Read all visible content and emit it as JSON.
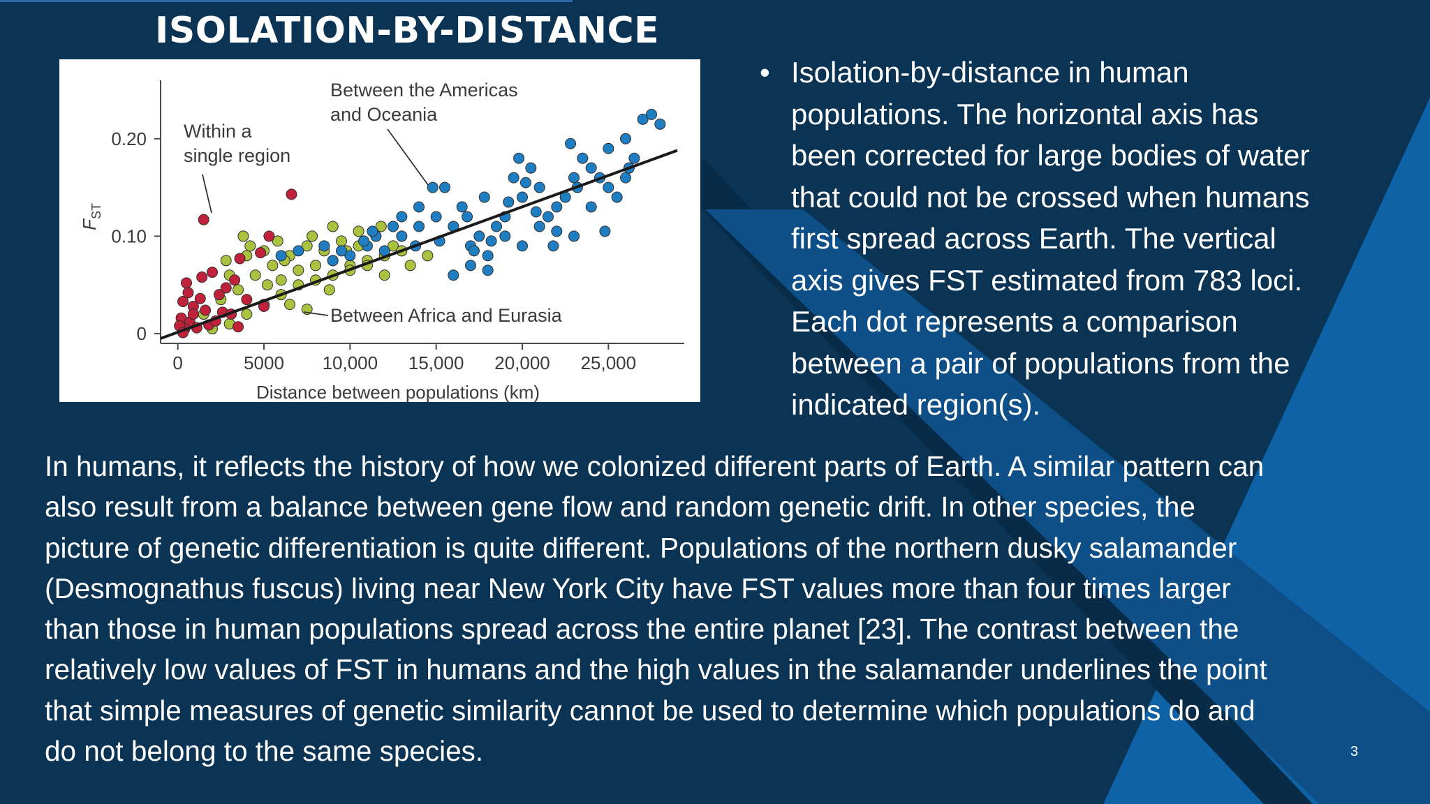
{
  "slide": {
    "title": "ISOLATION-BY-DISTANCE",
    "page_number": "3",
    "bullet_symbol": "•",
    "bullet_lines": [
      "Isolation-by-distance in human",
      "populations. The horizontal axis has",
      "been corrected for large bodies of water",
      "that could not be crossed when humans",
      "first spread across Earth. The vertical",
      "axis gives FST estimated from 783 loci.",
      "Each dot represents a comparison",
      "between a pair of populations from the",
      "indicated region(s)."
    ],
    "paragraph_lines": [
      "In humans, it reflects the history of how we colonized different parts of Earth. A similar pattern can",
      "also result from a balance between gene flow and random genetic drift. In other species, the",
      "picture of genetic differentiation is quite different. Populations of the northern dusky salamander",
      "(Desmognathus fuscus) living near New York City have FST values more than four times larger",
      "than those in human populations spread across the entire planet [23]. The contrast between the",
      "relatively low values of FST in humans and the high values in the salamander underlines the point",
      "that simple measures of genetic similarity cannot be used to determine which populations do and",
      "do not belong to the same species."
    ]
  },
  "colors": {
    "background": "#0a3354",
    "band_dark": "#082b47",
    "band_mid": "#0d4f86",
    "band_light": "#0f62a6",
    "within_region": "#c0223b",
    "africa_eurasia": "#a9c23f",
    "americas_oceania": "#1f7ec2",
    "fit_line": "#1a1a1a"
  },
  "chart_data": {
    "type": "scatter",
    "xlabel": "Distance between populations (km)",
    "ylabel": "F",
    "ylabel_sub": "ST",
    "x_ticks": [
      {
        "value": 0,
        "label": "0"
      },
      {
        "value": 5000,
        "label": "5000"
      },
      {
        "value": 10000,
        "label": "10,000"
      },
      {
        "value": 15000,
        "label": "15,000"
      },
      {
        "value": 20000,
        "label": "20,000"
      },
      {
        "value": 25000,
        "label": "25,000"
      }
    ],
    "y_ticks": [
      {
        "value": 0,
        "label": "0"
      },
      {
        "value": 0.1,
        "label": "0.10"
      },
      {
        "value": 0.2,
        "label": "0.20"
      }
    ],
    "xlim": [
      -1000,
      29000
    ],
    "ylim": [
      -0.01,
      0.26
    ],
    "fit_line": {
      "from": [
        -1000,
        -0.005
      ],
      "to": [
        29000,
        0.188
      ]
    },
    "annotations": [
      {
        "id": "within",
        "lines": [
          "Within a",
          "single region"
        ],
        "points_to": [
          1500,
          0.117
        ]
      },
      {
        "id": "americas",
        "lines": [
          "Between the Americas",
          "and Oceania"
        ],
        "points_to": [
          14800,
          0.15
        ]
      },
      {
        "id": "africa",
        "lines": [
          "Between Africa and Eurasia"
        ],
        "points_to": [
          7000,
          0.018
        ]
      }
    ],
    "series": [
      {
        "name": "Within a single region",
        "color_key": "within_region",
        "points": [
          [
            1500,
            0.117
          ],
          [
            6600,
            0.143
          ],
          [
            5300,
            0.1
          ],
          [
            4800,
            0.083
          ],
          [
            3600,
            0.077
          ],
          [
            2000,
            0.063
          ],
          [
            1400,
            0.058
          ],
          [
            500,
            0.052
          ],
          [
            300,
            0.033
          ],
          [
            900,
            0.028
          ],
          [
            2400,
            0.04
          ],
          [
            200,
            0.016
          ],
          [
            700,
            0.012
          ],
          [
            1100,
            0.006
          ],
          [
            400,
            0.005
          ],
          [
            1800,
            0.009
          ],
          [
            2600,
            0.022
          ],
          [
            3100,
            0.02
          ],
          [
            100,
            0.008
          ],
          [
            900,
            0.02
          ],
          [
            2200,
            0.013
          ],
          [
            3500,
            0.007
          ],
          [
            1300,
            0.036
          ],
          [
            4000,
            0.035
          ],
          [
            2800,
            0.047
          ],
          [
            3300,
            0.055
          ],
          [
            600,
            0.042
          ],
          [
            1600,
            0.024
          ],
          [
            5000,
            0.028
          ],
          [
            300,
            0.001
          ]
        ]
      },
      {
        "name": "Between Africa and Eurasia",
        "color_key": "africa_eurasia",
        "points": [
          [
            1500,
            0.02
          ],
          [
            2500,
            0.035
          ],
          [
            3500,
            0.045
          ],
          [
            4500,
            0.06
          ],
          [
            5500,
            0.07
          ],
          [
            6500,
            0.08
          ],
          [
            7500,
            0.09
          ],
          [
            8500,
            0.085
          ],
          [
            9500,
            0.095
          ],
          [
            10500,
            0.09
          ],
          [
            11500,
            0.1
          ],
          [
            12500,
            0.09
          ],
          [
            3000,
            0.06
          ],
          [
            4000,
            0.08
          ],
          [
            5000,
            0.085
          ],
          [
            6000,
            0.055
          ],
          [
            7000,
            0.065
          ],
          [
            8000,
            0.07
          ],
          [
            9000,
            0.075
          ],
          [
            10000,
            0.07
          ],
          [
            11000,
            0.075
          ],
          [
            12000,
            0.08
          ],
          [
            13000,
            0.085
          ],
          [
            2000,
            0.005
          ],
          [
            3000,
            0.01
          ],
          [
            4000,
            0.02
          ],
          [
            5000,
            0.03
          ],
          [
            6000,
            0.04
          ],
          [
            7000,
            0.05
          ],
          [
            8000,
            0.055
          ],
          [
            9000,
            0.06
          ],
          [
            10000,
            0.065
          ],
          [
            11000,
            0.07
          ],
          [
            12000,
            0.06
          ],
          [
            6500,
            0.03
          ],
          [
            7500,
            0.025
          ],
          [
            2800,
            0.075
          ],
          [
            4200,
            0.09
          ],
          [
            5800,
            0.095
          ],
          [
            3800,
            0.1
          ],
          [
            9000,
            0.11
          ],
          [
            10500,
            0.105
          ],
          [
            13500,
            0.07
          ],
          [
            14500,
            0.08
          ],
          [
            8800,
            0.045
          ],
          [
            5200,
            0.05
          ],
          [
            6200,
            0.075
          ],
          [
            7800,
            0.1
          ],
          [
            11800,
            0.11
          ],
          [
            9800,
            0.085
          ]
        ]
      },
      {
        "name": "Between the Americas and Oceania",
        "color_key": "americas_oceania",
        "points": [
          [
            6000,
            0.08
          ],
          [
            7000,
            0.085
          ],
          [
            8500,
            0.09
          ],
          [
            9000,
            0.075
          ],
          [
            10000,
            0.08
          ],
          [
            11000,
            0.09
          ],
          [
            12000,
            0.085
          ],
          [
            13000,
            0.1
          ],
          [
            14000,
            0.11
          ],
          [
            15000,
            0.12
          ],
          [
            16000,
            0.11
          ],
          [
            17000,
            0.09
          ],
          [
            18000,
            0.08
          ],
          [
            19000,
            0.12
          ],
          [
            20000,
            0.14
          ],
          [
            21000,
            0.15
          ],
          [
            22000,
            0.13
          ],
          [
            23000,
            0.16
          ],
          [
            24000,
            0.17
          ],
          [
            25000,
            0.19
          ],
          [
            26000,
            0.2
          ],
          [
            27000,
            0.22
          ],
          [
            14000,
            0.13
          ],
          [
            15500,
            0.15
          ],
          [
            16500,
            0.13
          ],
          [
            17500,
            0.1
          ],
          [
            18500,
            0.11
          ],
          [
            19500,
            0.16
          ],
          [
            20500,
            0.17
          ],
          [
            21500,
            0.12
          ],
          [
            22500,
            0.14
          ],
          [
            23500,
            0.18
          ],
          [
            24500,
            0.16
          ],
          [
            25500,
            0.14
          ],
          [
            26500,
            0.18
          ],
          [
            13000,
            0.12
          ],
          [
            12500,
            0.11
          ],
          [
            11500,
            0.1
          ],
          [
            16000,
            0.06
          ],
          [
            17000,
            0.07
          ],
          [
            18000,
            0.065
          ],
          [
            19000,
            0.1
          ],
          [
            20000,
            0.09
          ],
          [
            21000,
            0.11
          ],
          [
            22000,
            0.105
          ],
          [
            23000,
            0.1
          ],
          [
            24000,
            0.13
          ],
          [
            25000,
            0.15
          ],
          [
            26000,
            0.16
          ],
          [
            27500,
            0.225
          ],
          [
            28000,
            0.215
          ],
          [
            17800,
            0.14
          ],
          [
            19800,
            0.18
          ],
          [
            22800,
            0.195
          ],
          [
            16800,
            0.12
          ],
          [
            21800,
            0.09
          ],
          [
            14800,
            0.15
          ],
          [
            18200,
            0.095
          ],
          [
            20800,
            0.125
          ],
          [
            24800,
            0.105
          ],
          [
            15200,
            0.095
          ],
          [
            13800,
            0.09
          ],
          [
            10800,
            0.095
          ],
          [
            9500,
            0.085
          ],
          [
            11300,
            0.105
          ],
          [
            20200,
            0.155
          ],
          [
            23200,
            0.15
          ],
          [
            26200,
            0.17
          ],
          [
            19200,
            0.135
          ],
          [
            17200,
            0.085
          ]
        ]
      }
    ]
  }
}
